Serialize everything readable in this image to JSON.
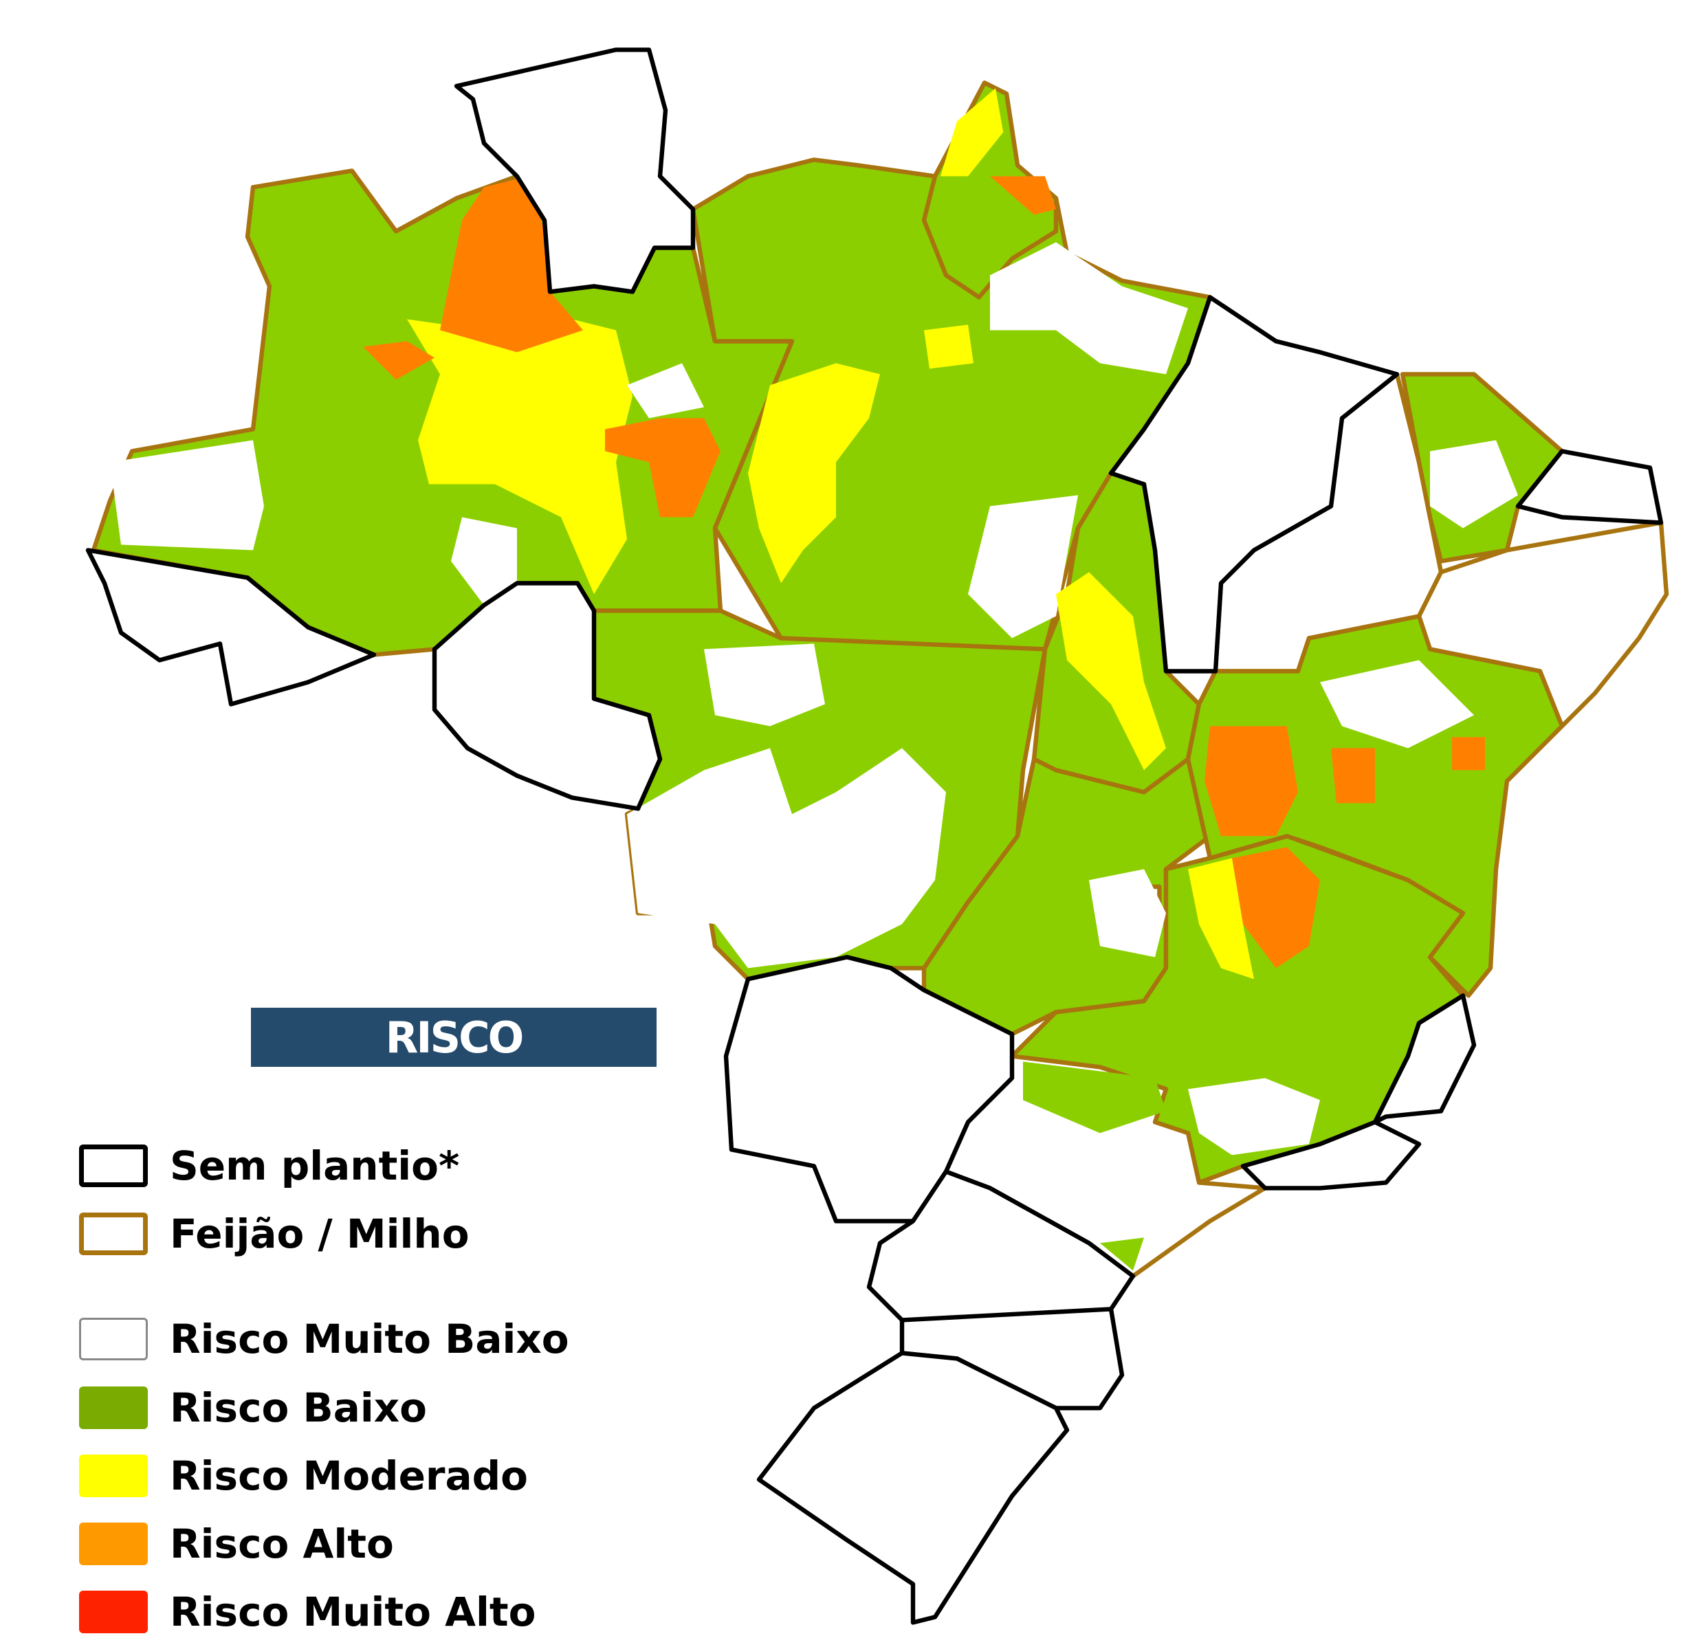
{
  "legend": {
    "title": "RISCO",
    "boundaries": [
      {
        "label": "Sem plantio*",
        "border": "#000000"
      },
      {
        "label": "Feijão / Milho",
        "border": "#a8740f"
      }
    ],
    "classes": [
      {
        "label": "Risco Muito Baixo",
        "color": "#ffffff"
      },
      {
        "label": "Risco Baixo",
        "color": "#7aab00"
      },
      {
        "label": "Risco Moderado",
        "color": "#ffff00"
      },
      {
        "label": "Risco Alto",
        "color": "#ff9900"
      },
      {
        "label": "Risco Muito Alto",
        "color": "#ff2200"
      }
    ]
  },
  "map_colors": {
    "green": "#8ccf00",
    "yellow": "#ffff00",
    "orange": "#ff8000",
    "white": "#ffffff"
  }
}
